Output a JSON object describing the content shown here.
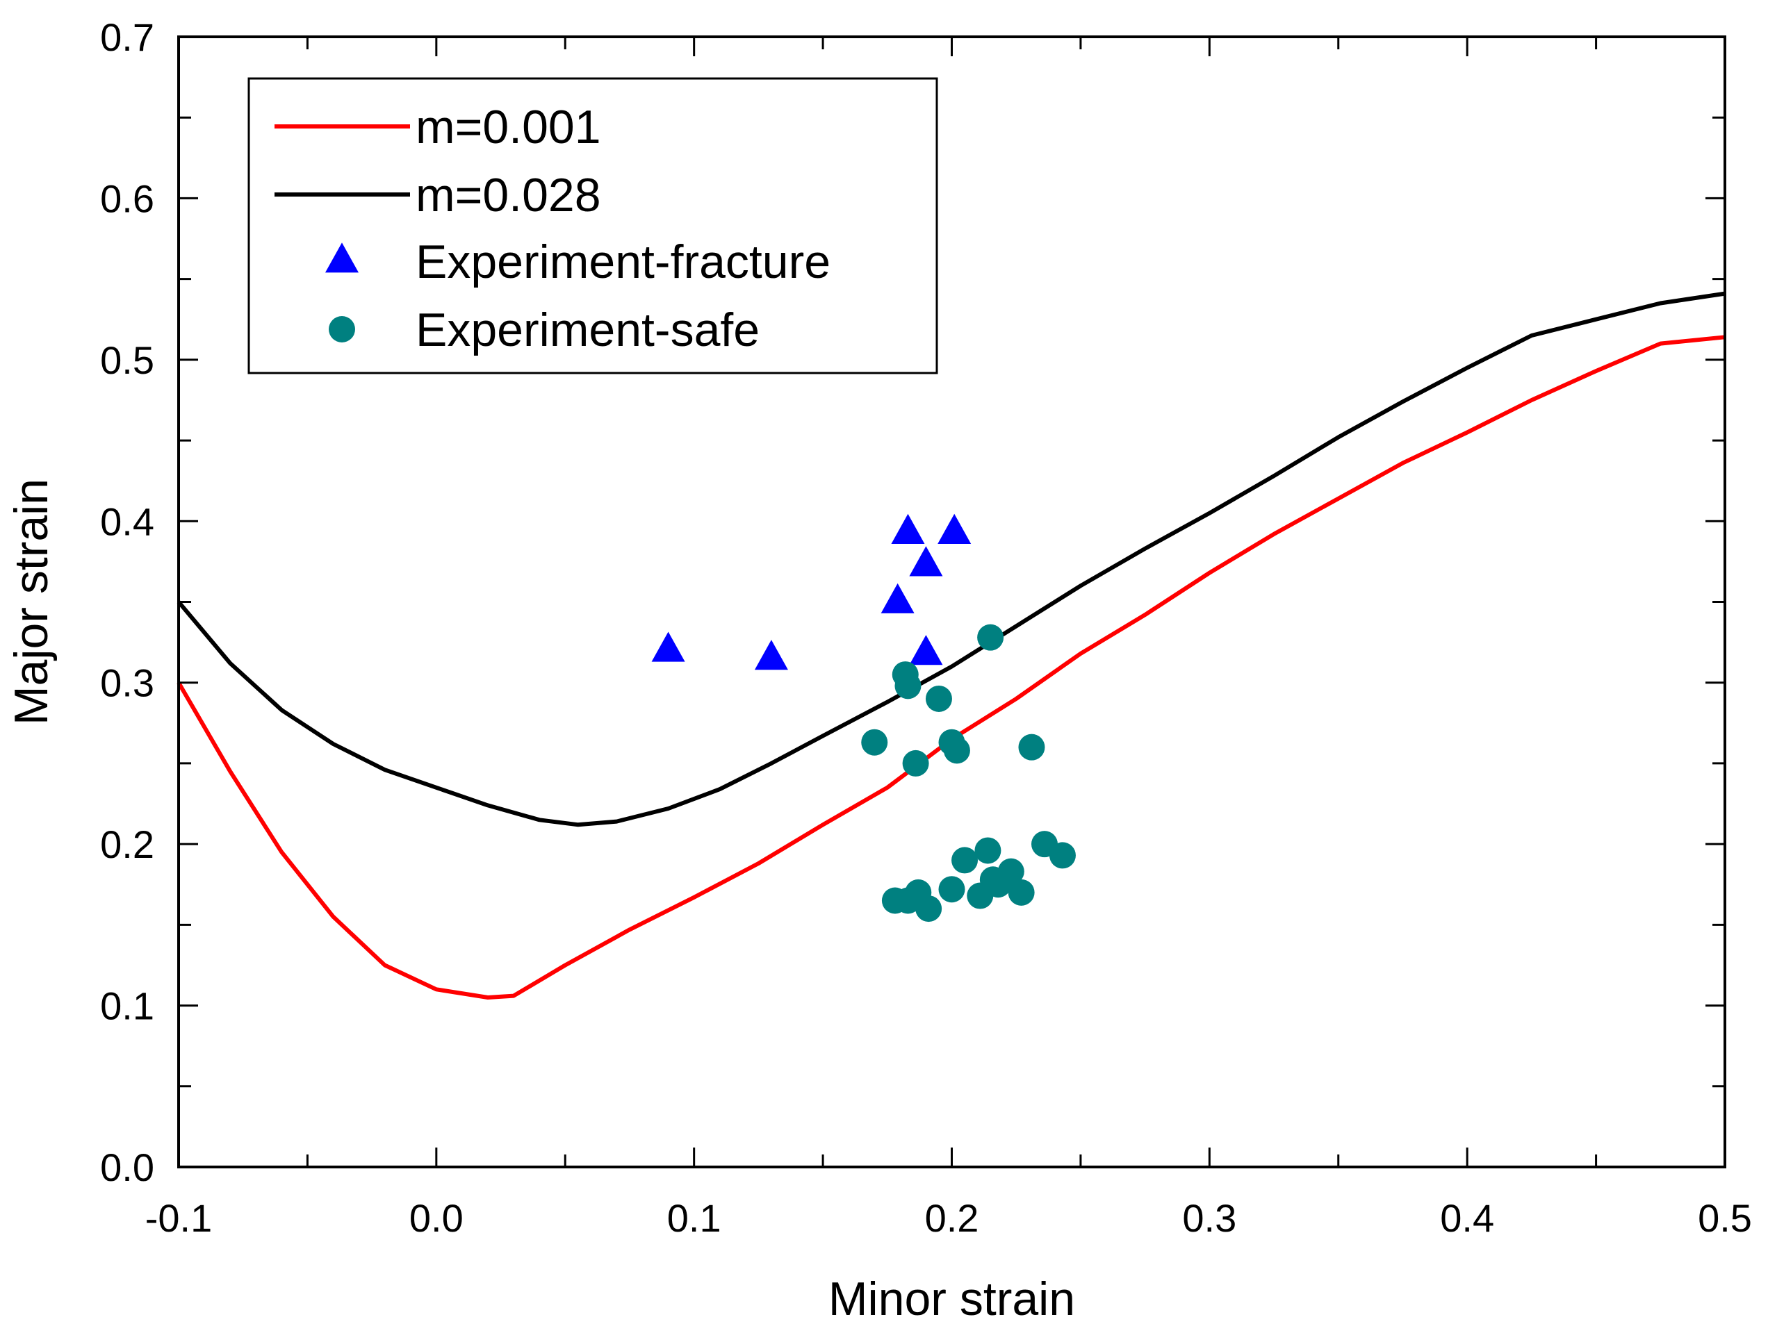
{
  "chart_data": {
    "type": "line",
    "title": "",
    "xlabel": "Minor strain",
    "ylabel": "Major strain",
    "xlim": [
      -0.1,
      0.5
    ],
    "ylim": [
      0.0,
      0.7
    ],
    "x_ticks": [
      -0.1,
      0.0,
      0.1,
      0.2,
      0.3,
      0.4,
      0.5
    ],
    "x_tick_labels": [
      "-0.1",
      "0.0",
      "0.1",
      "0.2",
      "0.3",
      "0.4",
      "0.5"
    ],
    "y_ticks": [
      0.0,
      0.1,
      0.2,
      0.3,
      0.4,
      0.5,
      0.6,
      0.7
    ],
    "y_tick_labels": [
      "0.0",
      "0.1",
      "0.2",
      "0.3",
      "0.4",
      "0.5",
      "0.6",
      "0.7"
    ],
    "grid": false,
    "legend_position": "top-left",
    "series": [
      {
        "name": "m=0.001",
        "kind": "line",
        "color": "#ff0000",
        "points": [
          [
            -0.1,
            0.3
          ],
          [
            -0.08,
            0.245
          ],
          [
            -0.06,
            0.195
          ],
          [
            -0.04,
            0.155
          ],
          [
            -0.02,
            0.125
          ],
          [
            0.0,
            0.11
          ],
          [
            0.02,
            0.105
          ],
          [
            0.03,
            0.106
          ],
          [
            0.05,
            0.125
          ],
          [
            0.075,
            0.147
          ],
          [
            0.1,
            0.167
          ],
          [
            0.125,
            0.188
          ],
          [
            0.15,
            0.212
          ],
          [
            0.175,
            0.235
          ],
          [
            0.2,
            0.265
          ],
          [
            0.225,
            0.29
          ],
          [
            0.25,
            0.318
          ],
          [
            0.275,
            0.342
          ],
          [
            0.3,
            0.368
          ],
          [
            0.325,
            0.392
          ],
          [
            0.35,
            0.414
          ],
          [
            0.375,
            0.436
          ],
          [
            0.4,
            0.455
          ],
          [
            0.425,
            0.475
          ],
          [
            0.45,
            0.493
          ],
          [
            0.475,
            0.51
          ],
          [
            0.5,
            0.514
          ]
        ]
      },
      {
        "name": "m=0.028",
        "kind": "line",
        "color": "#000000",
        "points": [
          [
            -0.1,
            0.35
          ],
          [
            -0.08,
            0.312
          ],
          [
            -0.06,
            0.283
          ],
          [
            -0.04,
            0.262
          ],
          [
            -0.02,
            0.246
          ],
          [
            0.0,
            0.235
          ],
          [
            0.02,
            0.224
          ],
          [
            0.04,
            0.215
          ],
          [
            0.055,
            0.212
          ],
          [
            0.07,
            0.214
          ],
          [
            0.09,
            0.222
          ],
          [
            0.11,
            0.234
          ],
          [
            0.13,
            0.25
          ],
          [
            0.15,
            0.267
          ],
          [
            0.175,
            0.288
          ],
          [
            0.2,
            0.31
          ],
          [
            0.225,
            0.335
          ],
          [
            0.25,
            0.36
          ],
          [
            0.275,
            0.383
          ],
          [
            0.3,
            0.405
          ],
          [
            0.325,
            0.428
          ],
          [
            0.35,
            0.452
          ],
          [
            0.375,
            0.474
          ],
          [
            0.4,
            0.495
          ],
          [
            0.425,
            0.515
          ],
          [
            0.45,
            0.525
          ],
          [
            0.475,
            0.535
          ],
          [
            0.5,
            0.541
          ]
        ]
      },
      {
        "name": "Experiment-fracture",
        "kind": "scatter",
        "marker": "triangle",
        "color": "#0000ff",
        "points": [
          [
            0.09,
            0.32
          ],
          [
            0.13,
            0.315
          ],
          [
            0.183,
            0.393
          ],
          [
            0.201,
            0.393
          ],
          [
            0.19,
            0.373
          ],
          [
            0.179,
            0.35
          ],
          [
            0.19,
            0.318
          ]
        ]
      },
      {
        "name": "Experiment-safe",
        "kind": "scatter",
        "marker": "circle",
        "color": "#008080",
        "points": [
          [
            0.215,
            0.328
          ],
          [
            0.182,
            0.305
          ],
          [
            0.183,
            0.298
          ],
          [
            0.195,
            0.29
          ],
          [
            0.17,
            0.263
          ],
          [
            0.2,
            0.263
          ],
          [
            0.202,
            0.258
          ],
          [
            0.231,
            0.26
          ],
          [
            0.186,
            0.25
          ],
          [
            0.236,
            0.2
          ],
          [
            0.243,
            0.193
          ],
          [
            0.214,
            0.196
          ],
          [
            0.205,
            0.19
          ],
          [
            0.223,
            0.183
          ],
          [
            0.216,
            0.178
          ],
          [
            0.218,
            0.175
          ],
          [
            0.2,
            0.172
          ],
          [
            0.211,
            0.168
          ],
          [
            0.227,
            0.17
          ],
          [
            0.178,
            0.165
          ],
          [
            0.183,
            0.165
          ],
          [
            0.187,
            0.17
          ],
          [
            0.191,
            0.16
          ]
        ]
      }
    ]
  }
}
